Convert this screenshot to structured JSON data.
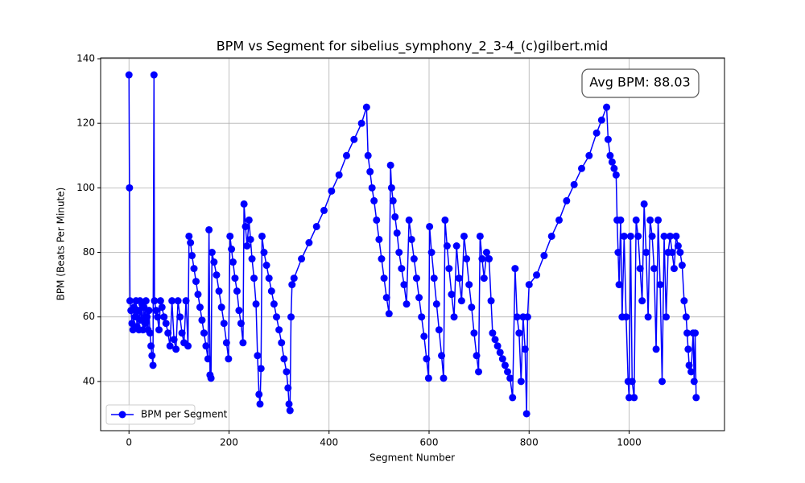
{
  "chart_data": {
    "type": "line",
    "title": "BPM vs Segment for sibelius_symphony_2_3-4_(c)gilbert.mid",
    "x_label": "Segment Number",
    "y_label": "BPM (Beats Per Minute)",
    "annotation": "Avg BPM: 88.03",
    "xlim": [
      -56.7,
      1190.7
    ],
    "ylim": [
      24.75,
      140.25
    ],
    "xticks": [
      0,
      200,
      400,
      600,
      800,
      1000
    ],
    "yticks": [
      40,
      60,
      80,
      100,
      120,
      140
    ],
    "grid": true,
    "legend_position": "lower left",
    "series": [
      {
        "name": "BPM per Segment",
        "color": "#0000ff",
        "x": [
          0,
          1,
          2,
          4,
          6,
          8,
          10,
          12,
          14,
          16,
          18,
          20,
          22,
          24,
          26,
          28,
          30,
          32,
          34,
          36,
          38,
          40,
          42,
          44,
          46,
          48,
          50,
          51,
          54,
          57,
          60,
          63,
          66,
          70,
          74,
          78,
          82,
          86,
          90,
          94,
          98,
          102,
          106,
          110,
          114,
          118,
          120,
          123,
          126,
          130,
          134,
          138,
          142,
          146,
          150,
          154,
          158,
          160,
          162,
          164,
          166,
          170,
          175,
          180,
          185,
          190,
          195,
          199,
          202,
          205,
          208,
          212,
          216,
          220,
          224,
          228,
          230,
          233,
          236,
          240,
          243,
          246,
          250,
          254,
          257,
          260,
          262,
          264,
          266,
          270,
          275,
          280,
          285,
          290,
          295,
          300,
          305,
          310,
          315,
          318,
          320,
          322,
          324,
          326,
          330,
          345,
          360,
          375,
          390,
          405,
          420,
          435,
          450,
          465,
          475,
          478,
          482,
          486,
          490,
          495,
          500,
          505,
          510,
          515,
          520,
          523,
          525,
          528,
          532,
          536,
          540,
          545,
          550,
          555,
          560,
          565,
          570,
          575,
          580,
          585,
          590,
          595,
          599,
          601,
          605,
          610,
          615,
          620,
          625,
          629,
          632,
          636,
          640,
          645,
          650,
          655,
          660,
          665,
          670,
          675,
          680,
          685,
          690,
          695,
          699,
          702,
          706,
          710,
          715,
          720,
          724,
          727,
          732,
          737,
          742,
          747,
          752,
          757,
          762,
          767,
          772,
          776,
          780,
          784,
          788,
          792,
          795,
          797,
          800,
          815,
          830,
          845,
          860,
          875,
          890,
          905,
          920,
          935,
          945,
          955,
          958,
          962,
          966,
          970,
          974,
          976,
          978,
          980,
          983,
          986,
          990,
          994,
          998,
          1000,
          1003,
          1006,
          1010,
          1014,
          1018,
          1022,
          1026,
          1030,
          1034,
          1038,
          1042,
          1046,
          1050,
          1054,
          1058,
          1062,
          1066,
          1070,
          1074,
          1078,
          1082,
          1086,
          1090,
          1094,
          1098,
          1102,
          1106,
          1110,
          1114,
          1116,
          1118,
          1120,
          1124,
          1128,
          1130,
          1132,
          1134
        ],
        "values": [
          135,
          100,
          65,
          62,
          58,
          56,
          63,
          60,
          65,
          57,
          62,
          56,
          65,
          59,
          64,
          56,
          63,
          58,
          65,
          60,
          56,
          62,
          55,
          51,
          48,
          45,
          135,
          65,
          62,
          60,
          56,
          65,
          63,
          60,
          58,
          55,
          51,
          65,
          53,
          50,
          65,
          60,
          55,
          52,
          65,
          51,
          85,
          83,
          79,
          75,
          71,
          67,
          63,
          59,
          55,
          51,
          47,
          87,
          42,
          41,
          80,
          77,
          73,
          68,
          63,
          58,
          52,
          47,
          85,
          81,
          77,
          72,
          68,
          62,
          58,
          52,
          95,
          88,
          82,
          90,
          84,
          78,
          72,
          64,
          48,
          36,
          33,
          44,
          85,
          80,
          76,
          72,
          68,
          64,
          60,
          56,
          52,
          47,
          43,
          38,
          33,
          31,
          60,
          70,
          72,
          78,
          83,
          88,
          93,
          99,
          104,
          110,
          115,
          120,
          125,
          110,
          105,
          100,
          96,
          90,
          84,
          78,
          72,
          66,
          61,
          107,
          100,
          96,
          91,
          86,
          80,
          75,
          70,
          64,
          90,
          84,
          78,
          72,
          66,
          60,
          54,
          47,
          41,
          88,
          80,
          72,
          64,
          56,
          48,
          41,
          90,
          82,
          75,
          67,
          60,
          82,
          72,
          65,
          85,
          78,
          70,
          63,
          55,
          48,
          43,
          85,
          78,
          72,
          80,
          78,
          65,
          55,
          53,
          51,
          49,
          47,
          45,
          43,
          41,
          35,
          75,
          60,
          55,
          40,
          60,
          50,
          30,
          60,
          70,
          73,
          79,
          85,
          90,
          96,
          101,
          106,
          110,
          117,
          121,
          125,
          115,
          110,
          108,
          106,
          104,
          90,
          80,
          70,
          90,
          60,
          85,
          60,
          40,
          35,
          85,
          40,
          35,
          90,
          85,
          75,
          65,
          95,
          80,
          60,
          90,
          85,
          75,
          50,
          90,
          70,
          40,
          85,
          60,
          80,
          85,
          80,
          75,
          85,
          82,
          80,
          76,
          65,
          60,
          55,
          50,
          45,
          43,
          55,
          40,
          55,
          35
        ]
      }
    ]
  }
}
